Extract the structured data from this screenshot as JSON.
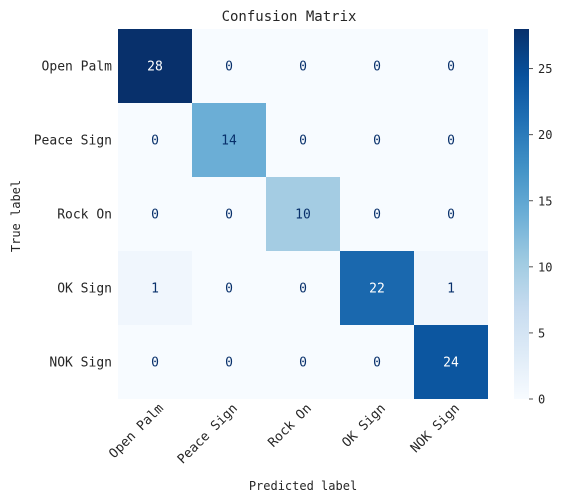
{
  "chart_data": {
    "type": "heatmap",
    "title": "Confusion Matrix",
    "xlabel": "Predicted label",
    "ylabel": "True label",
    "x_categories": [
      "Open Palm",
      "Peace Sign",
      "Rock On",
      "OK Sign",
      "NOK Sign"
    ],
    "y_categories": [
      "Open Palm",
      "Peace Sign",
      "Rock On",
      "OK Sign",
      "NOK Sign"
    ],
    "values": [
      [
        28,
        0,
        0,
        0,
        0
      ],
      [
        0,
        14,
        0,
        0,
        0
      ],
      [
        0,
        0,
        10,
        0,
        0
      ],
      [
        1,
        0,
        0,
        22,
        1
      ],
      [
        0,
        0,
        0,
        0,
        24
      ]
    ],
    "colormap": "Blues",
    "vmin": 0,
    "vmax": 28,
    "colorbar_ticks": [
      0,
      5,
      10,
      15,
      20,
      25
    ],
    "grid": false
  }
}
